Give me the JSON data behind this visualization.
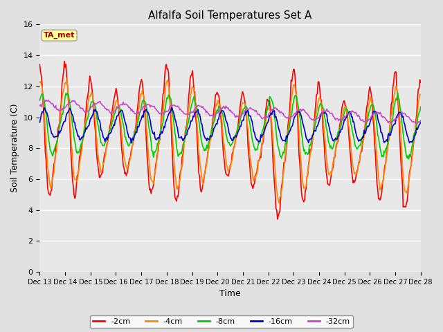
{
  "title": "Alfalfa Soil Temperatures Set A",
  "xlabel": "Time",
  "ylabel": "Soil Temperature (C)",
  "ylim": [
    0,
    16
  ],
  "yticks": [
    0,
    2,
    4,
    6,
    8,
    10,
    12,
    14,
    16
  ],
  "bg_color": "#e0e0e0",
  "plot_bg_color": "#e8e8e8",
  "annotation_text": "TA_met",
  "annotation_bg": "#ffff99",
  "annotation_border": "#aaaaaa",
  "annotation_text_color": "#990000",
  "colors": {
    "-2cm": "#ff0000",
    "-4cm": "#ff8800",
    "-8cm": "#00cc00",
    "-16cm": "#0000cc",
    "-32cm": "#cc44cc"
  },
  "x_tick_labels": [
    "Dec 13",
    "Dec 14",
    "Dec 15",
    "Dec 16",
    "Dec 17",
    "Dec 18",
    "Dec 19",
    "Dec 20",
    "Dec 21",
    "Dec 22",
    "Dec 23",
    "Dec 24",
    "Dec 25",
    "Dec 26",
    "Dec 27",
    "Dec 28"
  ],
  "n_points": 480
}
